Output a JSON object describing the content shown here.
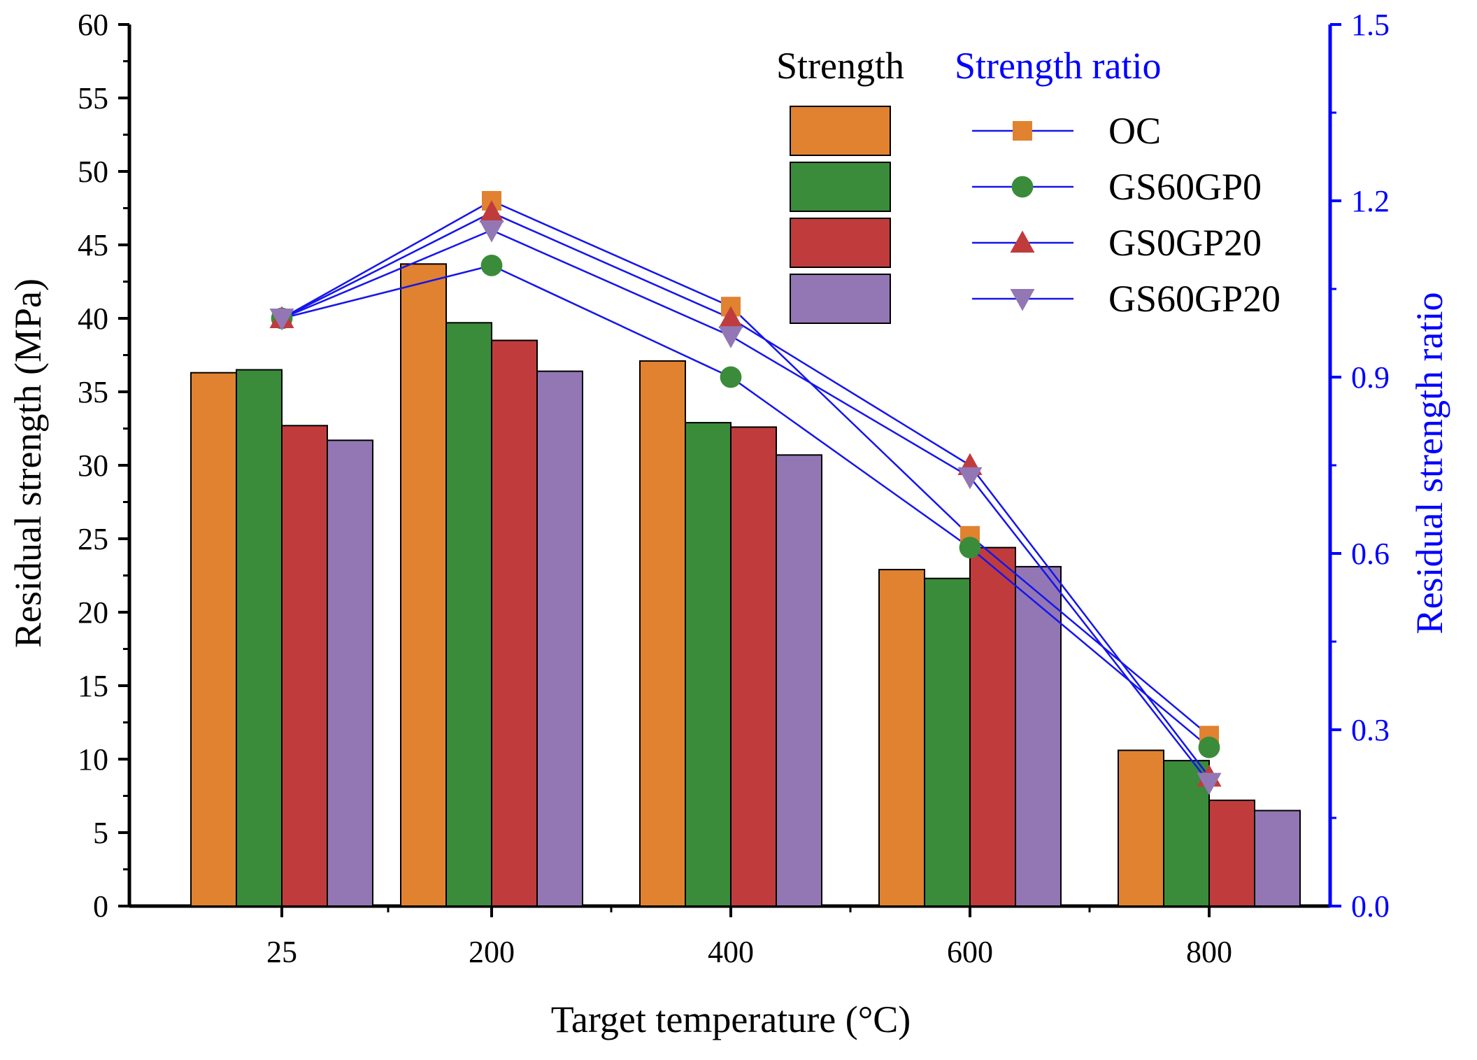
{
  "chart_data": {
    "type": "bar",
    "xlabel": "Target temperature (°C)",
    "ylabel": "Residual strength (MPa)",
    "y2label": "Residual strength ratio",
    "categories": [
      "25",
      "200",
      "400",
      "600",
      "800"
    ],
    "ylim": [
      0,
      60
    ],
    "yticks": [
      "0",
      "5",
      "10",
      "15",
      "20",
      "25",
      "30",
      "35",
      "40",
      "45",
      "50",
      "55",
      "60"
    ],
    "y2lim": [
      0,
      1.5
    ],
    "y2ticks": [
      "0.0",
      "0.3",
      "0.6",
      "0.9",
      "1.2",
      "1.5"
    ],
    "legend": {
      "strength_header": "Strength",
      "ratio_header": "Strength ratio",
      "position": "top-right"
    },
    "series": [
      {
        "name": "OC",
        "color": "#E08230",
        "marker": "square",
        "values": [
          36.3,
          43.7,
          37.1,
          22.9,
          10.6
        ],
        "ratio": [
          1.0,
          1.2,
          1.02,
          0.63,
          0.29
        ]
      },
      {
        "name": "GS60GP0",
        "color": "#3A8C3A",
        "marker": "circle",
        "values": [
          36.5,
          39.7,
          32.9,
          22.3,
          9.9
        ],
        "ratio": [
          1.0,
          1.09,
          0.9,
          0.61,
          0.27
        ]
      },
      {
        "name": "GS0GP20",
        "color": "#C03C3C",
        "marker": "triangle-up",
        "values": [
          32.7,
          38.5,
          32.6,
          24.4,
          7.2
        ],
        "ratio": [
          1.0,
          1.18,
          1.0,
          0.75,
          0.22
        ]
      },
      {
        "name": "GS60GP20",
        "color": "#9277B4",
        "marker": "triangle-down",
        "values": [
          31.7,
          36.4,
          30.7,
          23.1,
          6.5
        ],
        "ratio": [
          1.0,
          1.15,
          0.97,
          0.73,
          0.21
        ]
      }
    ],
    "line_color": "#1515EE",
    "axis_color": "#000000",
    "right_axis_color": "#0000FF"
  }
}
